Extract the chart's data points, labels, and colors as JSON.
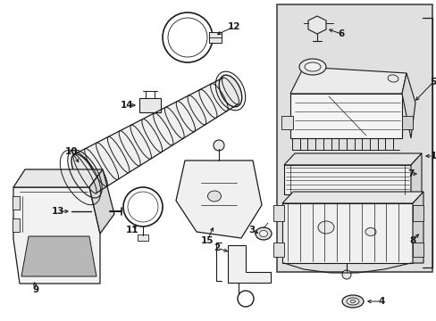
{
  "bg": "#ffffff",
  "lc": "#1a1a1a",
  "shade": "#e0e0e0",
  "fig_w": 4.89,
  "fig_h": 3.6,
  "dpi": 100,
  "lw": 0.8,
  "fs": 7.5
}
